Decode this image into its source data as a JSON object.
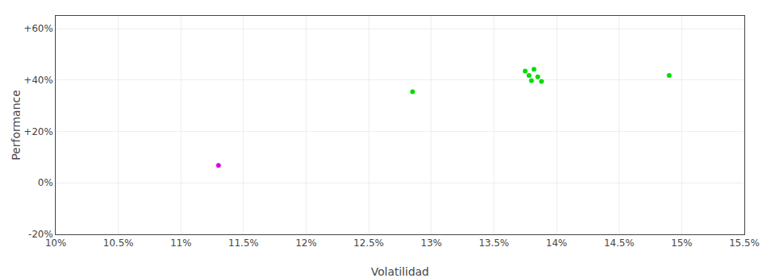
{
  "chart_data": {
    "type": "scatter",
    "xlabel": "Volatilidad",
    "ylabel": "Performance",
    "series": [
      {
        "color": "#00dd00",
        "marker": "circle",
        "x": [
          0.1285,
          0.1375,
          0.1382,
          0.1378,
          0.1385,
          0.138,
          0.1388,
          0.149
        ],
        "values": [
          0.355,
          0.435,
          0.442,
          0.418,
          0.413,
          0.398,
          0.395,
          0.418
        ]
      },
      {
        "color": "#dd00dd",
        "marker": "circle",
        "x": [
          0.113
        ],
        "values": [
          0.068
        ]
      }
    ],
    "xlim": [
      0.1,
      0.155
    ],
    "ylim": [
      -0.2,
      0.65
    ],
    "xticks": [
      {
        "value": 0.1,
        "label": "10%"
      },
      {
        "value": 0.105,
        "label": "10.5%"
      },
      {
        "value": 0.11,
        "label": "11%"
      },
      {
        "value": 0.115,
        "label": "11.5%"
      },
      {
        "value": 0.12,
        "label": "12%"
      },
      {
        "value": 0.125,
        "label": "12.5%"
      },
      {
        "value": 0.13,
        "label": "13%"
      },
      {
        "value": 0.135,
        "label": "13.5%"
      },
      {
        "value": 0.14,
        "label": "14%"
      },
      {
        "value": 0.145,
        "label": "14.5%"
      },
      {
        "value": 0.15,
        "label": "15%"
      },
      {
        "value": 0.155,
        "label": "15.5%"
      }
    ],
    "yticks": [
      {
        "value": -0.2,
        "label": "-20%"
      },
      {
        "value": 0.0,
        "label": "0%"
      },
      {
        "value": 0.2,
        "label": "+20%"
      },
      {
        "value": 0.4,
        "label": "+40%"
      },
      {
        "value": 0.6,
        "label": "+60%"
      }
    ],
    "grid": true
  }
}
